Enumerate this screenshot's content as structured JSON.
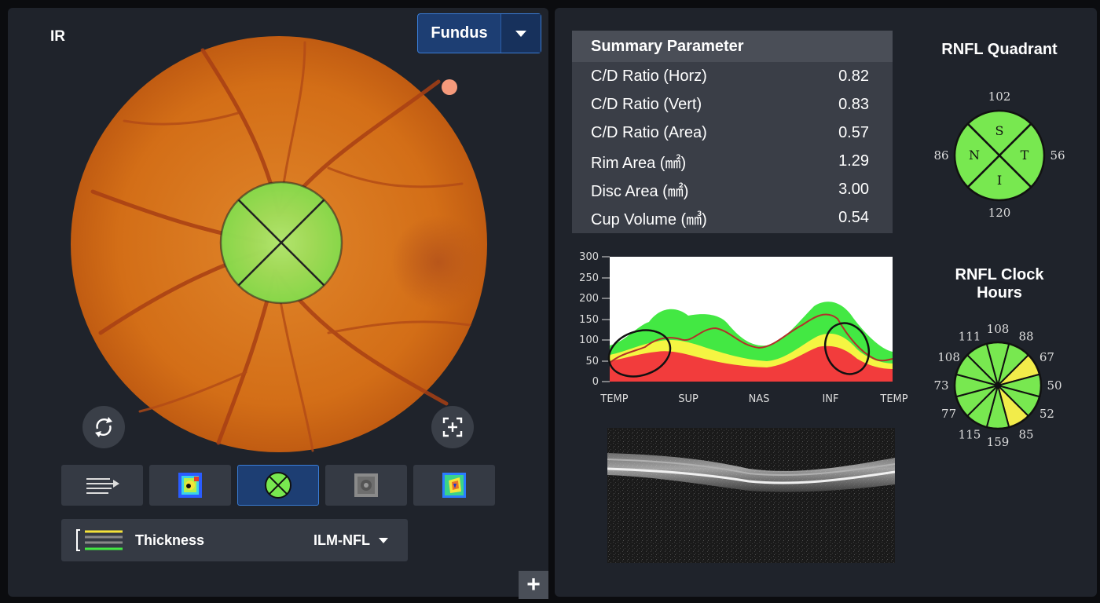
{
  "left": {
    "ir_label": "IR",
    "fundus_select": {
      "label": "Fundus"
    },
    "thickness": {
      "label": "Thickness",
      "layer": "ILM-NFL"
    },
    "plus_label": "+"
  },
  "summary": {
    "header": "Summary Parameter",
    "rows": [
      {
        "label": "C/D Ratio (Horz)",
        "value": "0.82"
      },
      {
        "label": "C/D Ratio (Vert)",
        "value": "0.83"
      },
      {
        "label": "C/D Ratio (Area)",
        "value": "0.57"
      },
      {
        "label": "Rim Area (㎟)",
        "value": "1.29"
      },
      {
        "label": "Disc Area (㎟)",
        "value": "3.00"
      },
      {
        "label": "Cup Volume (㎣)",
        "value": "0.54"
      }
    ]
  },
  "quadrant": {
    "title": "RNFL Quadrant",
    "sectors": [
      "S",
      "T",
      "I",
      "N"
    ],
    "values": {
      "top": "102",
      "right": "56",
      "bottom": "120",
      "left": "86"
    },
    "colors": {
      "S": "#78e850",
      "T": "#78e850",
      "I": "#78e850",
      "N": "#78e850"
    }
  },
  "clock": {
    "title": "RNFL Clock Hours",
    "labels": [
      "108",
      "88",
      "67",
      "50",
      "52",
      "85",
      "159",
      "115",
      "77",
      "73",
      "108",
      "111"
    ],
    "colors": [
      "#78e850",
      "#78e850",
      "#f2ec4a",
      "#78e850",
      "#78e850",
      "#f2ec4a",
      "#78e850",
      "#78e850",
      "#78e850",
      "#78e850",
      "#78e850",
      "#78e850"
    ]
  },
  "tsnit": {
    "y_ticks": [
      "300",
      "250",
      "200",
      "150",
      "100",
      "50",
      "0"
    ],
    "x_labels": [
      "TEMP",
      "SUP",
      "NAS",
      "INF",
      "TEMP"
    ],
    "colors": {
      "green": "#43e843",
      "yellow": "#f5f542",
      "red": "#f23c3c",
      "line": "#b2302a"
    }
  }
}
